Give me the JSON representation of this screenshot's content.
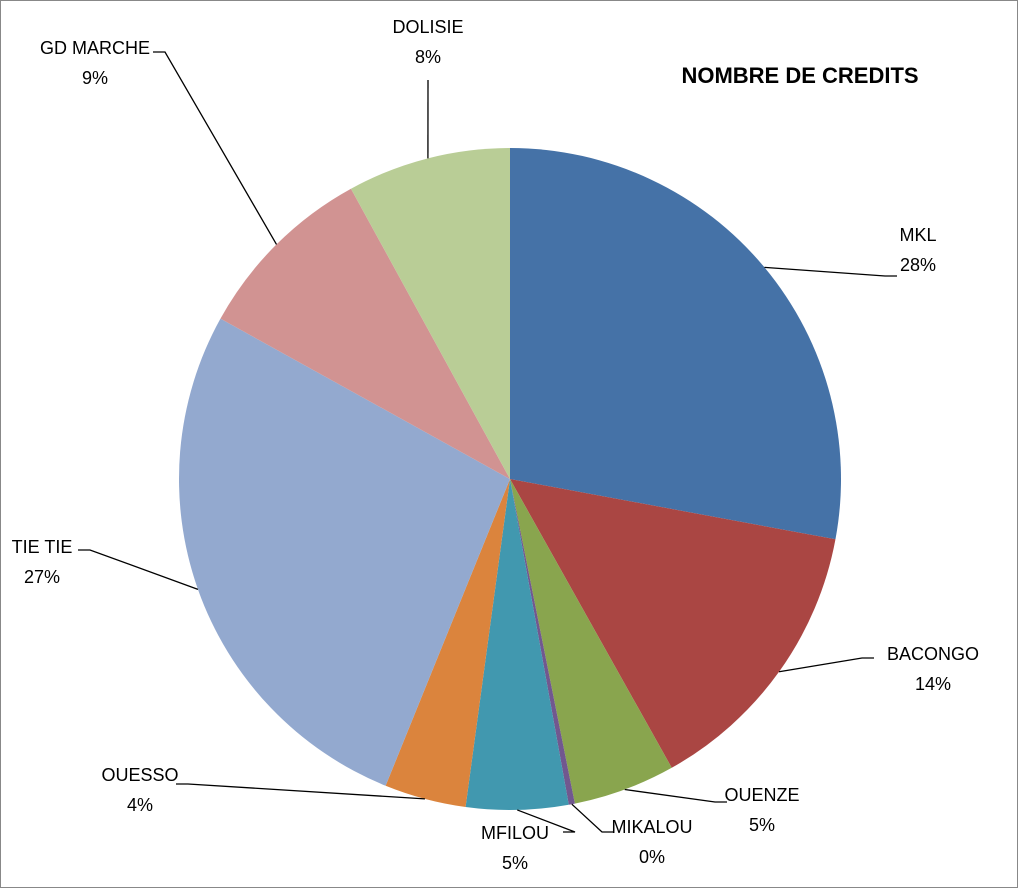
{
  "chart_data": {
    "type": "pie",
    "title": "NOMBRE DE CREDITS",
    "categories": [
      "MKL",
      "BACONGO",
      "OUENZE",
      "MIKALOU",
      "MFILOU",
      "OUESSO",
      "TIE TIE",
      "GD MARCHE",
      "DOLISIE"
    ],
    "values": [
      28,
      14,
      5,
      0.3,
      5,
      4,
      27,
      9,
      8
    ],
    "value_labels": [
      "28%",
      "14%",
      "5%",
      "0%",
      "5%",
      "4%",
      "27%",
      "9%",
      "8%"
    ],
    "colors": [
      "#4572a7",
      "#aa4643",
      "#89a54e",
      "#71588f",
      "#4198af",
      "#db843d",
      "#93a9cf",
      "#d19392",
      "#b9cd96"
    ]
  }
}
